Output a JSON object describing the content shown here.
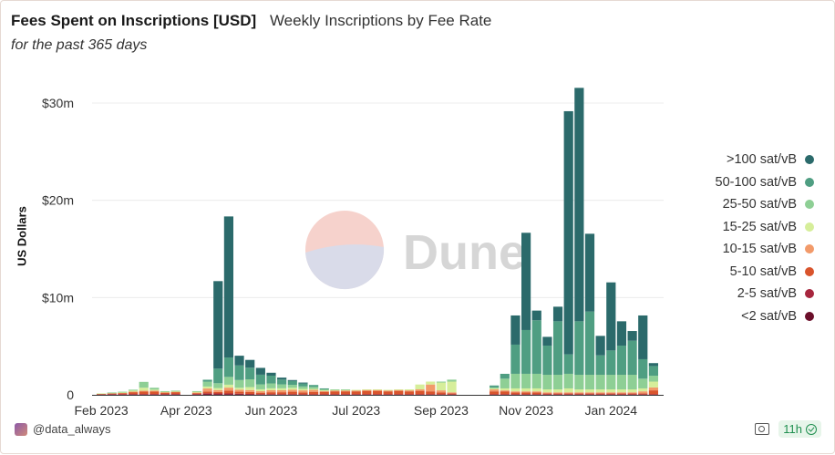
{
  "header": {
    "title": "Fees Spent on Inscriptions [USD]",
    "subtitle": "Weekly Inscriptions by Fee Rate",
    "description": "for the past 365 days"
  },
  "watermark": "Dune",
  "footer": {
    "username": "@data_always",
    "refresh_badge": "11h"
  },
  "icons": {
    "avatar": "avatar-icon",
    "camera": "camera-icon",
    "check": "check-circle-icon"
  },
  "chart_data": {
    "type": "bar",
    "stacked": true,
    "ylabel": "US Dollars",
    "xlabel": "",
    "ylim": [
      0,
      33000000
    ],
    "y_ticks": [
      0,
      10000000,
      20000000,
      30000000
    ],
    "y_tick_labels": [
      "0",
      "$10m",
      "$20m",
      "$30m"
    ],
    "x_tick_labels": [
      "Feb 2023",
      "Apr 2023",
      "Jun 2023",
      "Jul 2023",
      "Sep 2023",
      "Nov 2023",
      "Jan 2024"
    ],
    "x_tick_week_index": [
      0,
      8,
      16,
      24,
      32,
      40,
      48
    ],
    "legend_position": "right",
    "grid": true,
    "weeks": 53,
    "series": [
      {
        "name": "<2 sat/vB",
        "color": "#6b0f2a",
        "values": [
          0.02,
          0.02,
          0.02,
          0.03,
          0.03,
          0.03,
          0.03,
          0.03,
          0,
          0.03,
          0.05,
          0.04,
          0.04,
          0.04,
          0.04,
          0.02,
          0.02,
          0.02,
          0.02,
          0.01,
          0.01,
          0.01,
          0.01,
          0.01,
          0.01,
          0.01,
          0.01,
          0.01,
          0.01,
          0.01,
          0.01,
          0.01,
          0.01,
          0.01,
          0,
          0,
          0,
          0.01,
          0.01,
          0.01,
          0.01,
          0.01,
          0.01,
          0.01,
          0.01,
          0.01,
          0.01,
          0.01,
          0.01,
          0.01,
          0.01,
          0.01,
          0.01
        ]
      },
      {
        "name": "2-5 sat/vB",
        "color": "#a7263e",
        "values": [
          0.05,
          0.05,
          0.05,
          0.05,
          0.05,
          0.05,
          0.05,
          0.05,
          0,
          0.05,
          0.1,
          0.1,
          0.1,
          0.08,
          0.05,
          0.05,
          0.05,
          0.05,
          0.05,
          0.05,
          0.05,
          0.05,
          0.05,
          0.05,
          0.05,
          0.05,
          0.05,
          0.05,
          0.05,
          0.05,
          0.05,
          0.05,
          0.05,
          0.05,
          0,
          0,
          0,
          0.05,
          0.05,
          0.05,
          0.05,
          0.05,
          0.05,
          0.05,
          0.05,
          0.05,
          0.05,
          0.05,
          0.05,
          0.05,
          0.05,
          0.05,
          0.05
        ]
      },
      {
        "name": "5-10 sat/vB",
        "color": "#d9542c",
        "values": [
          0.05,
          0.1,
          0.1,
          0.2,
          0.25,
          0.25,
          0.15,
          0.2,
          0,
          0.1,
          0.2,
          0.15,
          0.3,
          0.2,
          0.2,
          0.15,
          0.2,
          0.2,
          0.25,
          0.2,
          0.25,
          0.25,
          0.3,
          0.3,
          0.3,
          0.35,
          0.35,
          0.3,
          0.35,
          0.3,
          0.35,
          0.3,
          0.2,
          0.1,
          0,
          0,
          0,
          0.3,
          0.3,
          0.2,
          0.2,
          0.2,
          0.1,
          0.1,
          0.1,
          0.1,
          0.1,
          0.1,
          0.1,
          0.1,
          0.1,
          0.1,
          0.4
        ]
      },
      {
        "name": "10-15 sat/vB",
        "color": "#f29a6a",
        "values": [
          0.02,
          0.02,
          0.05,
          0.05,
          0.1,
          0.1,
          0.05,
          0.05,
          0,
          0.05,
          0.3,
          0.2,
          0.3,
          0.2,
          0.2,
          0.15,
          0.2,
          0.2,
          0.2,
          0.2,
          0.2,
          0.1,
          0.1,
          0.1,
          0.1,
          0.1,
          0.1,
          0.1,
          0.1,
          0.1,
          0.15,
          0.7,
          0.2,
          0.1,
          0,
          0,
          0,
          0.2,
          0.1,
          0.1,
          0.1,
          0.1,
          0.1,
          0.1,
          0.1,
          0.1,
          0.1,
          0.1,
          0.1,
          0.1,
          0.1,
          0.2,
          0.3
        ]
      },
      {
        "name": "15-25 sat/vB",
        "color": "#d6ee9a",
        "values": [
          0.01,
          0.03,
          0.05,
          0.1,
          0.3,
          0.1,
          0.05,
          0.05,
          0,
          0.1,
          0.2,
          0.2,
          0.3,
          0.2,
          0.3,
          0.2,
          0.2,
          0.2,
          0.2,
          0.15,
          0.1,
          0.05,
          0.05,
          0.05,
          0.05,
          0.05,
          0.05,
          0.05,
          0.05,
          0.1,
          0.5,
          0.3,
          0.8,
          1.1,
          0,
          0,
          0,
          0.1,
          0.2,
          0.3,
          0.3,
          0.3,
          0.3,
          0.3,
          0.4,
          0.3,
          0.3,
          0.3,
          0.3,
          0.3,
          0.3,
          0.3,
          0.6
        ]
      },
      {
        "name": "25-50 sat/vB",
        "color": "#8ecf95",
        "values": [
          0,
          0.02,
          0.05,
          0.1,
          0.6,
          0.2,
          0.05,
          0.05,
          0,
          0.05,
          0.5,
          0.5,
          0.8,
          0.8,
          0.8,
          0.5,
          0.5,
          0.4,
          0.3,
          0.25,
          0.2,
          0.1,
          0.05,
          0.05,
          0,
          0,
          0,
          0,
          0,
          0,
          0,
          0,
          0.1,
          0.2,
          0,
          0,
          0,
          0.1,
          1.0,
          1.5,
          1.5,
          1.5,
          1.5,
          1.5,
          1.5,
          1.5,
          1.5,
          1.5,
          1.5,
          1.5,
          1.5,
          1.0,
          0.6
        ]
      },
      {
        "name": "50-100 sat/vB",
        "color": "#4f9e82",
        "values": [
          0,
          0,
          0,
          0,
          0,
          0,
          0,
          0,
          0,
          0,
          0.2,
          1.5,
          2.0,
          1.5,
          1.2,
          1.0,
          0.8,
          0.5,
          0.4,
          0.3,
          0.2,
          0.1,
          0,
          0,
          0,
          0,
          0,
          0,
          0,
          0,
          0,
          0,
          0,
          0,
          0,
          0,
          0,
          0.2,
          0.5,
          3.0,
          4.5,
          5.5,
          3.0,
          5.5,
          2.0,
          5.5,
          6.5,
          2.0,
          2.5,
          3.0,
          3.5,
          2.0,
          1.0
        ]
      },
      {
        "name": ">100 sat/vB",
        "color": "#2b6a6b",
        "values": [
          0,
          0,
          0,
          0,
          0,
          0,
          0,
          0,
          0,
          0,
          0,
          9.0,
          14.5,
          1.0,
          0.8,
          0.7,
          0.3,
          0.2,
          0.1,
          0.1,
          0,
          0,
          0,
          0,
          0,
          0,
          0,
          0,
          0,
          0,
          0,
          0,
          0,
          0,
          0,
          0,
          0,
          0,
          0,
          3.0,
          10.0,
          1.0,
          0.9,
          1.5,
          25.0,
          24.0,
          8.0,
          2.0,
          7.0,
          2.5,
          1.0,
          4.5,
          0.3
        ]
      }
    ]
  }
}
